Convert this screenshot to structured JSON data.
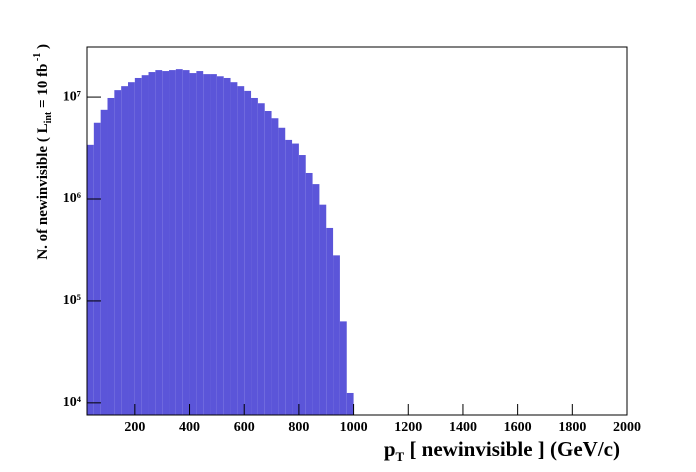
{
  "chart_data": {
    "type": "histogram",
    "x_label": {
      "main": "p",
      "sub": "T",
      "rest": " [ newinvisible ] (GeV/c)"
    },
    "y_label": {
      "main": "N. of newinvisible ( L",
      "sub": "int",
      "mid": " = 10 fb",
      "sup": " -1",
      "end": " )"
    },
    "color": "#5b55d9",
    "log_y": true,
    "grid": false,
    "bins": [
      25,
      50,
      75,
      100,
      125,
      150,
      175,
      200,
      225,
      250,
      275,
      300,
      325,
      350,
      375,
      400,
      425,
      450,
      475,
      500,
      525,
      550,
      575,
      600,
      625,
      650,
      675,
      700,
      725,
      750,
      775,
      800,
      825,
      850,
      875,
      900,
      925,
      950,
      975,
      1000
    ],
    "values": [
      3400000,
      5600000,
      7500000,
      9800000,
      11700000,
      12800000,
      14000000,
      15400000,
      16400000,
      17600000,
      18400000,
      18000000,
      18400000,
      18800000,
      18400000,
      17200000,
      18000000,
      16800000,
      16800000,
      16000000,
      15400000,
      14000000,
      12800000,
      11500000,
      9800000,
      8700000,
      7300000,
      6200000,
      5000000,
      3800000,
      3500000,
      2700000,
      1800000,
      1400000,
      880000,
      520000,
      280000,
      63000,
      12500
    ],
    "xlim": [
      25,
      2000
    ],
    "xticks": [
      200,
      400,
      600,
      800,
      1000,
      1200,
      1400,
      1600,
      1800,
      2000
    ],
    "ylim": [
      7600,
      31000000
    ],
    "yticks": [
      {
        "value": 10000,
        "label": "10⁴"
      },
      {
        "value": 100000,
        "label": "10⁵"
      },
      {
        "value": 1000000,
        "label": "10⁶"
      },
      {
        "value": 10000000,
        "label": "10⁷"
      }
    ]
  }
}
